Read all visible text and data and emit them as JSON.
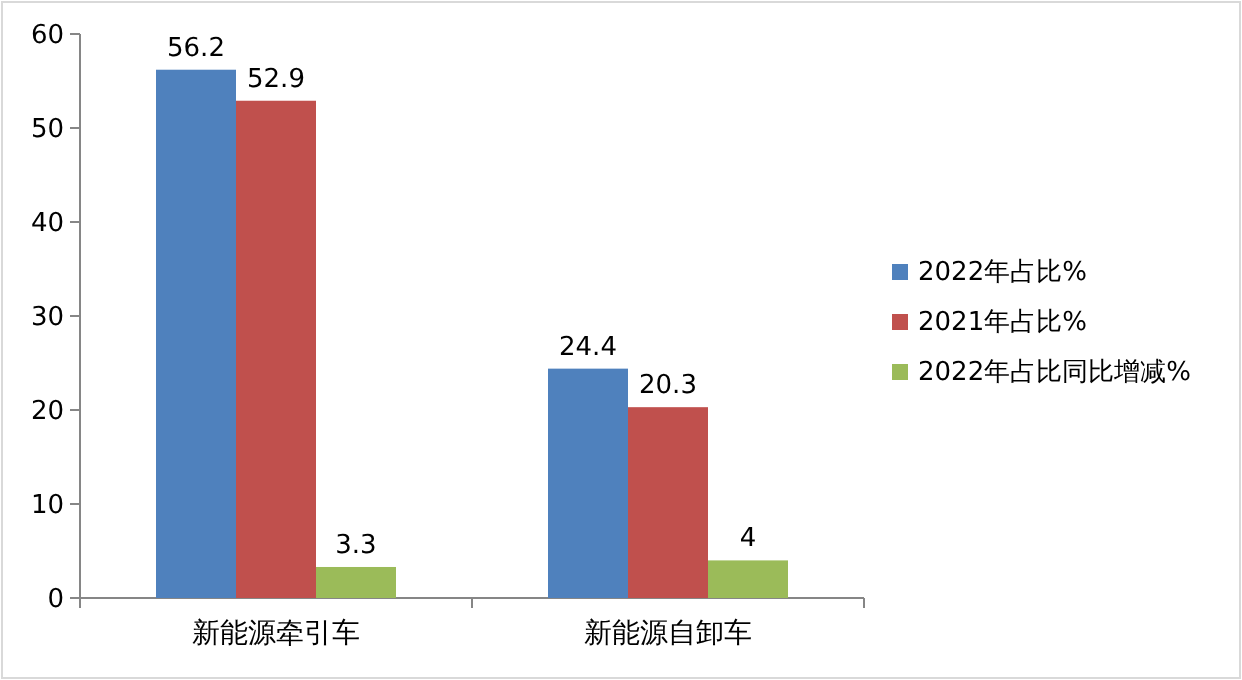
{
  "chart_data": {
    "type": "bar",
    "categories": [
      "新能源牵引车",
      "新能源自卸车"
    ],
    "series": [
      {
        "name": "2022年占比%",
        "color": "#4f81bd",
        "values": [
          56.2,
          24.4
        ]
      },
      {
        "name": "2021年占比%",
        "color": "#c0504d",
        "values": [
          52.9,
          20.3
        ]
      },
      {
        "name": "2022年占比同比增减%",
        "color": "#9bbb59",
        "values": [
          3.3,
          4
        ]
      }
    ],
    "ylim": [
      0,
      60
    ],
    "yticks": [
      0,
      10,
      20,
      30,
      40,
      50,
      60
    ],
    "data_labels": true,
    "legend": "right"
  }
}
